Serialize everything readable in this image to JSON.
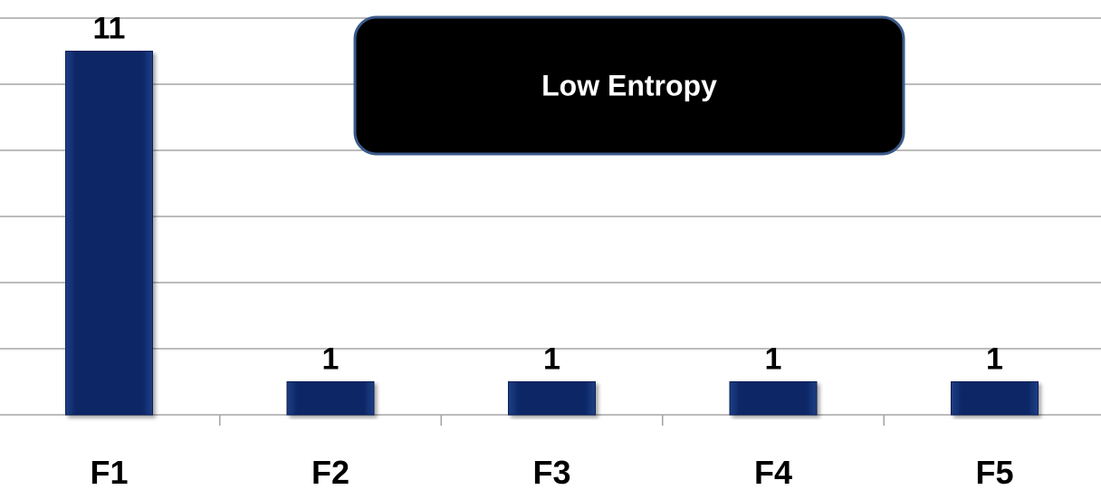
{
  "chart_data": {
    "type": "bar",
    "categories": [
      "F1",
      "F2",
      "F3",
      "F4",
      "F5"
    ],
    "values": [
      11,
      1,
      1,
      1,
      1
    ],
    "data_labels": [
      "11",
      "1",
      "1",
      "1",
      "1"
    ],
    "ylim": [
      0,
      12
    ],
    "grid": true,
    "legend": "none",
    "bar_color": "#0a2463",
    "gridline_color": "#a6a6a6",
    "annotation": {
      "text": "Low Entropy",
      "background": "#000000",
      "border": "#3b5a8a",
      "text_color": "#ffffff"
    }
  }
}
